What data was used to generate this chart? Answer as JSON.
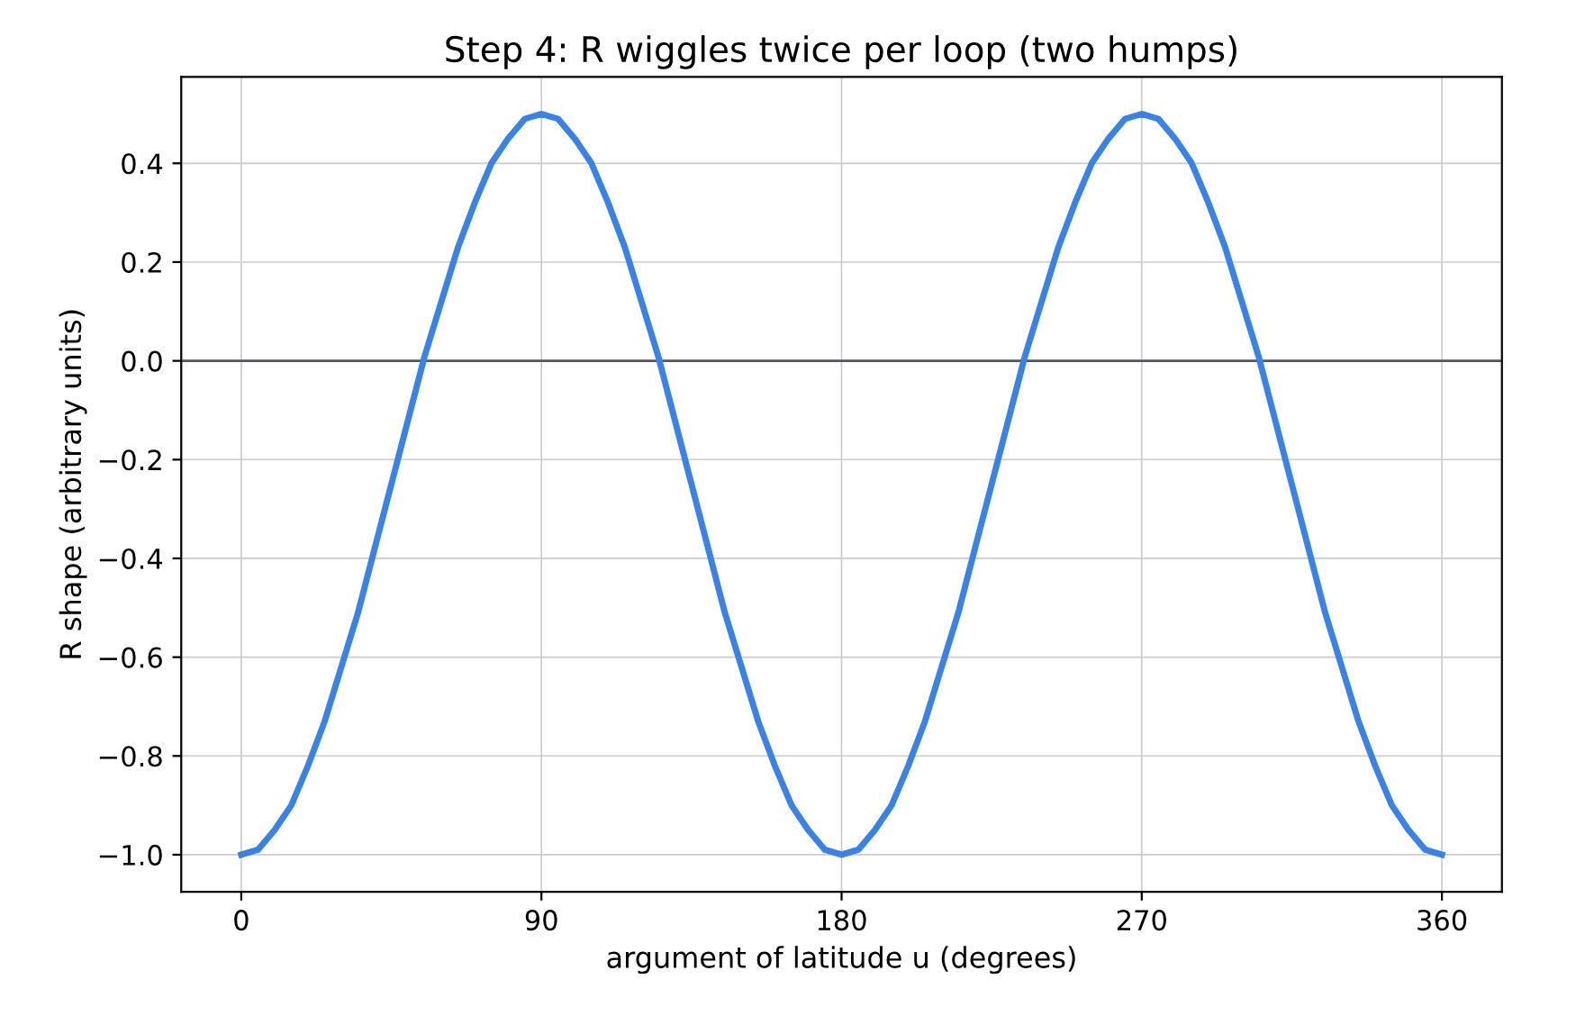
{
  "chart_data": {
    "type": "line",
    "title": "Step 4: R wiggles twice per loop (two humps)",
    "xlabel": "argument of latitude u (degrees)",
    "ylabel": "R shape (arbitrary units)",
    "x": [
      0,
      5,
      10,
      15,
      20,
      25,
      30,
      35,
      40,
      45,
      50,
      55,
      60,
      65,
      70,
      75,
      80,
      85,
      90,
      95,
      100,
      105,
      110,
      115,
      120,
      125,
      130,
      135,
      140,
      145,
      150,
      155,
      160,
      165,
      170,
      175,
      180,
      185,
      190,
      195,
      200,
      205,
      210,
      215,
      220,
      225,
      230,
      235,
      240,
      245,
      250,
      255,
      260,
      265,
      270,
      275,
      280,
      285,
      290,
      295,
      300,
      305,
      310,
      315,
      320,
      325,
      330,
      335,
      340,
      345,
      350,
      355,
      360
    ],
    "series": [
      {
        "color": "#3b82e6",
        "values": [
          -1.0,
          -0.99,
          -0.95,
          -0.9,
          -0.82,
          -0.73,
          -0.62,
          -0.51,
          -0.38,
          -0.25,
          -0.12,
          0.01,
          0.12,
          0.23,
          0.32,
          0.4,
          0.45,
          0.49,
          0.5,
          0.49,
          0.45,
          0.4,
          0.32,
          0.23,
          0.12,
          0.01,
          -0.12,
          -0.25,
          -0.38,
          -0.51,
          -0.62,
          -0.73,
          -0.82,
          -0.9,
          -0.95,
          -0.99,
          -1.0,
          -0.99,
          -0.95,
          -0.9,
          -0.82,
          -0.73,
          -0.62,
          -0.51,
          -0.38,
          -0.25,
          -0.12,
          0.01,
          0.12,
          0.23,
          0.32,
          0.4,
          0.45,
          0.49,
          0.5,
          0.49,
          0.45,
          0.4,
          0.32,
          0.23,
          0.12,
          0.01,
          -0.12,
          -0.25,
          -0.38,
          -0.51,
          -0.62,
          -0.73,
          -0.82,
          -0.9,
          -0.95,
          -0.99,
          -1.0
        ]
      }
    ],
    "xlim": [
      -18,
      378
    ],
    "xticks": [
      0,
      90,
      180,
      270,
      360
    ],
    "ylim": [
      -1.075,
      0.575
    ],
    "yticks": [
      {
        "value": -1.0,
        "label": "−1.0"
      },
      {
        "value": -0.8,
        "label": "−0.8"
      },
      {
        "value": -0.6,
        "label": "−0.6"
      },
      {
        "value": -0.4,
        "label": "−0.4"
      },
      {
        "value": -0.2,
        "label": "−0.2"
      },
      {
        "value": 0.0,
        "label": "0.0"
      },
      {
        "value": 0.2,
        "label": "0.2"
      },
      {
        "value": 0.4,
        "label": "0.4"
      }
    ],
    "ref_lines": [
      {
        "axis": "y",
        "value": 0,
        "color": "#555566"
      }
    ],
    "grid": true,
    "marker": "none",
    "line_style": "solid"
  }
}
